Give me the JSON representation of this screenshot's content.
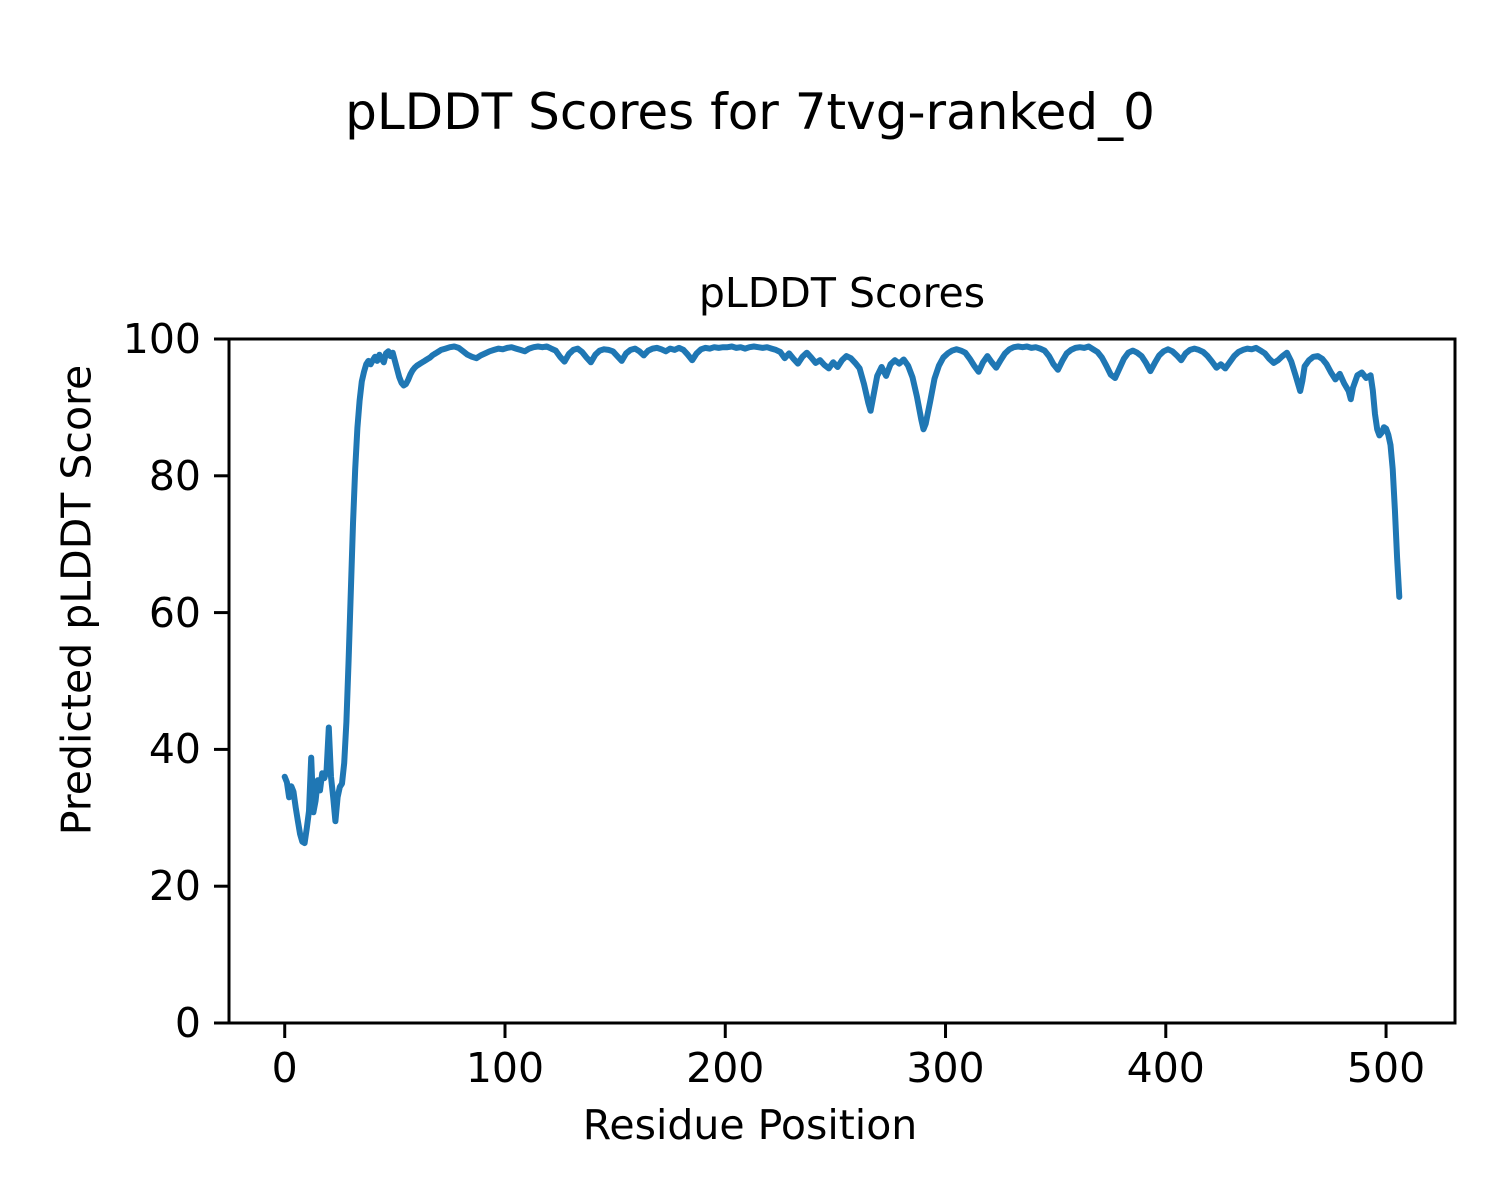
{
  "figure": {
    "suptitle": "pLDDT Scores for 7tvg-ranked_0"
  },
  "chart_data": {
    "type": "line",
    "title": "pLDDT Scores",
    "xlabel": "Residue Position",
    "ylabel": "Predicted pLDDT Score",
    "xlim": [
      -25.3,
      531.3
    ],
    "ylim": [
      0,
      100
    ],
    "x_ticks": [
      0,
      100,
      200,
      300,
      400,
      500
    ],
    "y_ticks": [
      0,
      20,
      40,
      60,
      80,
      100
    ],
    "grid": false,
    "legend": "none",
    "line_color": "#1f77b4",
    "axis_color": "#000000",
    "series": [
      {
        "name": "pLDDT",
        "points": [
          [
            0,
            36.0
          ],
          [
            1,
            35.2
          ],
          [
            2,
            33.0
          ],
          [
            3,
            34.6
          ],
          [
            4,
            33.8
          ],
          [
            5,
            31.5
          ],
          [
            6,
            29.5
          ],
          [
            7,
            27.6
          ],
          [
            8,
            26.5
          ],
          [
            9,
            26.3
          ],
          [
            10,
            28.5
          ],
          [
            11,
            31.0
          ],
          [
            12,
            38.8
          ],
          [
            13,
            30.8
          ],
          [
            14,
            32.5
          ],
          [
            15,
            35.5
          ],
          [
            16,
            34.0
          ],
          [
            17,
            36.5
          ],
          [
            18,
            35.8
          ],
          [
            19,
            37.0
          ],
          [
            20,
            43.2
          ],
          [
            21,
            36.0
          ],
          [
            22,
            33.0
          ],
          [
            23,
            29.5
          ],
          [
            24,
            33.0
          ],
          [
            25,
            34.5
          ],
          [
            26,
            35.0
          ],
          [
            27,
            38.0
          ],
          [
            28,
            44.0
          ],
          [
            29,
            53.0
          ],
          [
            30,
            63.0
          ],
          [
            31,
            73.0
          ],
          [
            32,
            81.0
          ],
          [
            33,
            87.0
          ],
          [
            34,
            91.0
          ],
          [
            35,
            93.8
          ],
          [
            36,
            95.2
          ],
          [
            37,
            96.3
          ],
          [
            38,
            96.8
          ],
          [
            39,
            96.3
          ],
          [
            40,
            96.9
          ],
          [
            41,
            97.4
          ],
          [
            42,
            96.8
          ],
          [
            43,
            97.7
          ],
          [
            44,
            97.1
          ],
          [
            45,
            96.6
          ],
          [
            46,
            97.9
          ],
          [
            47,
            98.2
          ],
          [
            48,
            97.5
          ],
          [
            49,
            98.0
          ],
          [
            50,
            96.8
          ],
          [
            51,
            95.6
          ],
          [
            52,
            94.4
          ],
          [
            53,
            93.6
          ],
          [
            54,
            93.2
          ],
          [
            55,
            93.4
          ],
          [
            56,
            94.0
          ],
          [
            57,
            94.8
          ],
          [
            58,
            95.4
          ],
          [
            59,
            95.8
          ],
          [
            60,
            96.1
          ],
          [
            61,
            96.3
          ],
          [
            62,
            96.5
          ],
          [
            63,
            96.7
          ],
          [
            64,
            96.9
          ],
          [
            65,
            97.1
          ],
          [
            66,
            97.3
          ],
          [
            67,
            97.6
          ],
          [
            68,
            97.8
          ],
          [
            69,
            98.0
          ],
          [
            70,
            98.2
          ],
          [
            71,
            98.4
          ],
          [
            73,
            98.6
          ],
          [
            75,
            98.8
          ],
          [
            77,
            98.9
          ],
          [
            79,
            98.7
          ],
          [
            81,
            98.2
          ],
          [
            83,
            97.7
          ],
          [
            85,
            97.4
          ],
          [
            87,
            97.2
          ],
          [
            89,
            97.6
          ],
          [
            91,
            97.9
          ],
          [
            93,
            98.2
          ],
          [
            95,
            98.4
          ],
          [
            97,
            98.6
          ],
          [
            99,
            98.5
          ],
          [
            101,
            98.7
          ],
          [
            103,
            98.8
          ],
          [
            105,
            98.6
          ],
          [
            107,
            98.4
          ],
          [
            109,
            98.2
          ],
          [
            111,
            98.6
          ],
          [
            113,
            98.8
          ],
          [
            115,
            98.9
          ],
          [
            117,
            98.8
          ],
          [
            119,
            98.9
          ],
          [
            121,
            98.6
          ],
          [
            123,
            98.3
          ],
          [
            125,
            97.4
          ],
          [
            127,
            96.7
          ],
          [
            129,
            97.8
          ],
          [
            131,
            98.4
          ],
          [
            133,
            98.6
          ],
          [
            135,
            98.1
          ],
          [
            137,
            97.3
          ],
          [
            139,
            96.6
          ],
          [
            141,
            97.7
          ],
          [
            143,
            98.3
          ],
          [
            145,
            98.5
          ],
          [
            147,
            98.4
          ],
          [
            149,
            98.2
          ],
          [
            151,
            97.5
          ],
          [
            153,
            96.8
          ],
          [
            155,
            97.9
          ],
          [
            157,
            98.4
          ],
          [
            159,
            98.6
          ],
          [
            161,
            98.2
          ],
          [
            163,
            97.6
          ],
          [
            165,
            98.3
          ],
          [
            167,
            98.6
          ],
          [
            169,
            98.7
          ],
          [
            171,
            98.5
          ],
          [
            173,
            98.2
          ],
          [
            175,
            98.6
          ],
          [
            177,
            98.4
          ],
          [
            179,
            98.7
          ],
          [
            181,
            98.4
          ],
          [
            183,
            97.7
          ],
          [
            185,
            96.9
          ],
          [
            187,
            97.9
          ],
          [
            189,
            98.5
          ],
          [
            191,
            98.7
          ],
          [
            193,
            98.6
          ],
          [
            195,
            98.8
          ],
          [
            197,
            98.7
          ],
          [
            199,
            98.8
          ],
          [
            201,
            98.8
          ],
          [
            203,
            98.9
          ],
          [
            205,
            98.7
          ],
          [
            207,
            98.8
          ],
          [
            209,
            98.6
          ],
          [
            211,
            98.8
          ],
          [
            213,
            98.9
          ],
          [
            215,
            98.8
          ],
          [
            217,
            98.7
          ],
          [
            219,
            98.8
          ],
          [
            221,
            98.6
          ],
          [
            223,
            98.4
          ],
          [
            225,
            98.1
          ],
          [
            227,
            97.2
          ],
          [
            229,
            97.9
          ],
          [
            231,
            97.1
          ],
          [
            233,
            96.4
          ],
          [
            235,
            97.4
          ],
          [
            237,
            98.0
          ],
          [
            239,
            97.3
          ],
          [
            241,
            96.5
          ],
          [
            243,
            96.9
          ],
          [
            245,
            96.2
          ],
          [
            247,
            95.7
          ],
          [
            249,
            96.6
          ],
          [
            251,
            95.9
          ],
          [
            253,
            96.9
          ],
          [
            255,
            97.5
          ],
          [
            257,
            97.2
          ],
          [
            259,
            96.5
          ],
          [
            261,
            95.7
          ],
          [
            263,
            93.4
          ],
          [
            265,
            90.6
          ],
          [
            266,
            89.5
          ],
          [
            267,
            91.2
          ],
          [
            269,
            94.6
          ],
          [
            271,
            95.9
          ],
          [
            273,
            94.6
          ],
          [
            275,
            96.3
          ],
          [
            277,
            96.9
          ],
          [
            279,
            96.4
          ],
          [
            281,
            97.0
          ],
          [
            283,
            96.1
          ],
          [
            285,
            94.4
          ],
          [
            287,
            91.6
          ],
          [
            289,
            88.2
          ],
          [
            290,
            86.8
          ],
          [
            291,
            87.6
          ],
          [
            293,
            90.8
          ],
          [
            295,
            94.2
          ],
          [
            297,
            96.1
          ],
          [
            299,
            97.3
          ],
          [
            301,
            97.9
          ],
          [
            303,
            98.3
          ],
          [
            305,
            98.5
          ],
          [
            307,
            98.3
          ],
          [
            309,
            98.0
          ],
          [
            311,
            97.1
          ],
          [
            313,
            96.1
          ],
          [
            315,
            95.2
          ],
          [
            317,
            96.6
          ],
          [
            319,
            97.5
          ],
          [
            321,
            96.6
          ],
          [
            323,
            95.8
          ],
          [
            325,
            96.9
          ],
          [
            327,
            97.9
          ],
          [
            329,
            98.5
          ],
          [
            331,
            98.8
          ],
          [
            333,
            98.9
          ],
          [
            335,
            98.8
          ],
          [
            337,
            98.9
          ],
          [
            339,
            98.7
          ],
          [
            341,
            98.8
          ],
          [
            343,
            98.6
          ],
          [
            345,
            98.3
          ],
          [
            347,
            97.5
          ],
          [
            349,
            96.3
          ],
          [
            351,
            95.5
          ],
          [
            353,
            96.8
          ],
          [
            355,
            97.9
          ],
          [
            357,
            98.4
          ],
          [
            359,
            98.7
          ],
          [
            361,
            98.8
          ],
          [
            363,
            98.7
          ],
          [
            365,
            98.9
          ],
          [
            367,
            98.5
          ],
          [
            369,
            98.1
          ],
          [
            371,
            97.3
          ],
          [
            373,
            96.1
          ],
          [
            375,
            94.8
          ],
          [
            377,
            94.3
          ],
          [
            379,
            95.7
          ],
          [
            381,
            97.1
          ],
          [
            383,
            98.0
          ],
          [
            385,
            98.3
          ],
          [
            387,
            98.0
          ],
          [
            389,
            97.5
          ],
          [
            391,
            96.5
          ],
          [
            393,
            95.3
          ],
          [
            395,
            96.5
          ],
          [
            397,
            97.6
          ],
          [
            399,
            98.2
          ],
          [
            401,
            98.5
          ],
          [
            403,
            98.2
          ],
          [
            405,
            97.6
          ],
          [
            407,
            96.9
          ],
          [
            409,
            97.9
          ],
          [
            411,
            98.4
          ],
          [
            413,
            98.6
          ],
          [
            415,
            98.4
          ],
          [
            417,
            98.1
          ],
          [
            419,
            97.5
          ],
          [
            421,
            96.7
          ],
          [
            423,
            95.8
          ],
          [
            425,
            96.3
          ],
          [
            427,
            95.7
          ],
          [
            429,
            96.6
          ],
          [
            431,
            97.5
          ],
          [
            433,
            98.1
          ],
          [
            435,
            98.4
          ],
          [
            437,
            98.6
          ],
          [
            439,
            98.5
          ],
          [
            441,
            98.7
          ],
          [
            443,
            98.3
          ],
          [
            445,
            97.9
          ],
          [
            447,
            97.1
          ],
          [
            449,
            96.5
          ],
          [
            451,
            96.9
          ],
          [
            453,
            97.5
          ],
          [
            455,
            98.0
          ],
          [
            457,
            96.7
          ],
          [
            459,
            94.6
          ],
          [
            461,
            92.4
          ],
          [
            462,
            93.9
          ],
          [
            463,
            96.0
          ],
          [
            465,
            96.9
          ],
          [
            467,
            97.4
          ],
          [
            469,
            97.5
          ],
          [
            471,
            97.1
          ],
          [
            473,
            96.3
          ],
          [
            475,
            95.1
          ],
          [
            477,
            94.1
          ],
          [
            479,
            94.9
          ],
          [
            481,
            93.5
          ],
          [
            483,
            92.4
          ],
          [
            484,
            91.2
          ],
          [
            485,
            92.9
          ],
          [
            487,
            94.7
          ],
          [
            489,
            95.1
          ],
          [
            491,
            94.3
          ],
          [
            493,
            94.7
          ],
          [
            494,
            92.5
          ],
          [
            495,
            89.0
          ],
          [
            496,
            86.8
          ],
          [
            497,
            85.9
          ],
          [
            498,
            86.3
          ],
          [
            499,
            87.1
          ],
          [
            500,
            86.9
          ],
          [
            501,
            86.0
          ],
          [
            502,
            84.5
          ],
          [
            503,
            81.0
          ],
          [
            504,
            75.0
          ],
          [
            505,
            68.0
          ],
          [
            506,
            62.3
          ]
        ]
      }
    ]
  }
}
